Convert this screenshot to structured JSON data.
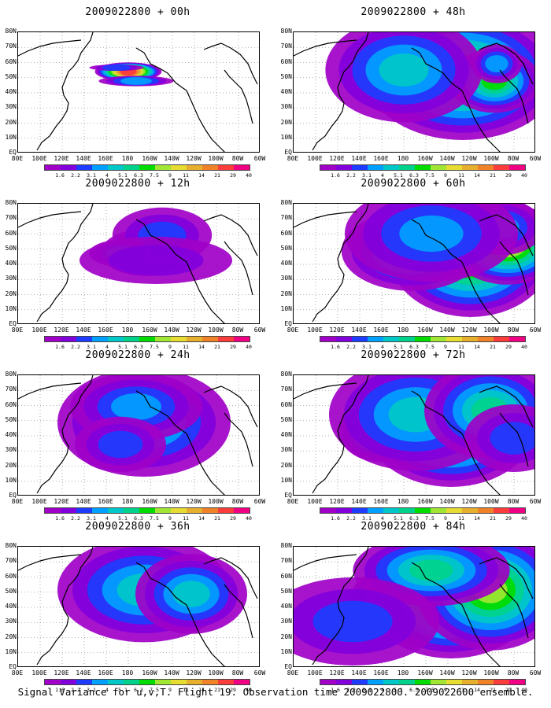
{
  "caption": "Signal Variance for u,v,T. Flight 19. Observation time 2009022800. 2009022600 ensemble.",
  "chart_data": {
    "type": "heatmap",
    "lat_labels": [
      "80N",
      "70N",
      "60N",
      "50N",
      "40N",
      "30N",
      "20N",
      "10N",
      "EQ"
    ],
    "lon_labels": [
      "80E",
      "100E",
      "120E",
      "140E",
      "160E",
      "180",
      "160W",
      "140W",
      "120W",
      "100W",
      "80W",
      "60W"
    ],
    "colorbar": {
      "levels": [
        "1.6",
        "2.2",
        "3.1",
        "4",
        "5.1",
        "6.3",
        "7.5",
        "9",
        "11",
        "14",
        "21",
        "29",
        "40"
      ],
      "colors": [
        "#a000c8",
        "#8200dc",
        "#1e3cff",
        "#00a0ff",
        "#00c8c8",
        "#00d28c",
        "#00dc00",
        "#a0e632",
        "#e6dc32",
        "#e6af2d",
        "#f08228",
        "#fa3c3c",
        "#f00082"
      ]
    },
    "panels": [
      {
        "title": "2009022800 + 00h",
        "hotspots": [
          [
            140,
            50,
            14,
            3,
            12
          ],
          [
            150,
            62,
            16,
            1,
            4
          ],
          [
            125,
            45,
            11,
            0,
            3
          ]
        ]
      },
      {
        "title": "2009022800 + 48h",
        "hotspots": [
          [
            175,
            52,
            40,
            22,
            9
          ],
          [
            215,
            55,
            45,
            30,
            8
          ],
          [
            255,
            62,
            20,
            14,
            7
          ],
          [
            140,
            48,
            36,
            24,
            5
          ],
          [
            258,
            40,
            10,
            8,
            4
          ]
        ]
      },
      {
        "title": "2009022800 + 12h",
        "hotspots": [
          [
            193,
            64,
            12,
            7,
            10
          ],
          [
            163,
            62,
            20,
            10,
            6
          ],
          [
            183,
            40,
            22,
            12,
            3
          ],
          [
            130,
            63,
            13,
            5,
            4
          ],
          [
            175,
            72,
            35,
            10,
            2
          ]
        ]
      },
      {
        "title": "2009022800 + 60h",
        "hotspots": [
          [
            225,
            62,
            38,
            30,
            9
          ],
          [
            150,
            60,
            32,
            18,
            6
          ],
          [
            272,
            52,
            26,
            18,
            9
          ],
          [
            265,
            30,
            18,
            12,
            4
          ],
          [
            175,
            38,
            40,
            22,
            4
          ]
        ]
      },
      {
        "title": "2009022800 + 24h",
        "hotspots": [
          [
            190,
            75,
            15,
            10,
            10
          ],
          [
            110,
            75,
            12,
            10,
            7
          ],
          [
            160,
            60,
            40,
            25,
            5
          ],
          [
            150,
            40,
            30,
            15,
            4
          ],
          [
            130,
            88,
            20,
            12,
            3
          ]
        ]
      },
      {
        "title": "2009022800 + 72h",
        "hotspots": [
          [
            200,
            60,
            40,
            30,
            9
          ],
          [
            110,
            70,
            18,
            14,
            8
          ],
          [
            155,
            50,
            40,
            26,
            5
          ],
          [
            250,
            45,
            30,
            22,
            6
          ],
          [
            280,
            80,
            22,
            15,
            3
          ]
        ]
      },
      {
        "title": "2009022800 + 36h",
        "hotspots": [
          [
            198,
            70,
            14,
            12,
            11
          ],
          [
            120,
            45,
            14,
            10,
            7
          ],
          [
            165,
            38,
            14,
            10,
            8
          ],
          [
            160,
            55,
            40,
            24,
            5
          ],
          [
            220,
            60,
            25,
            18,
            5
          ]
        ]
      },
      {
        "title": "2009022800 + 84h",
        "hotspots": [
          [
            120,
            65,
            16,
            12,
            10
          ],
          [
            200,
            60,
            40,
            30,
            9
          ],
          [
            250,
            55,
            34,
            28,
            8
          ],
          [
            175,
            30,
            36,
            16,
            6
          ],
          [
            75,
            95,
            40,
            20,
            3
          ]
        ]
      }
    ]
  }
}
